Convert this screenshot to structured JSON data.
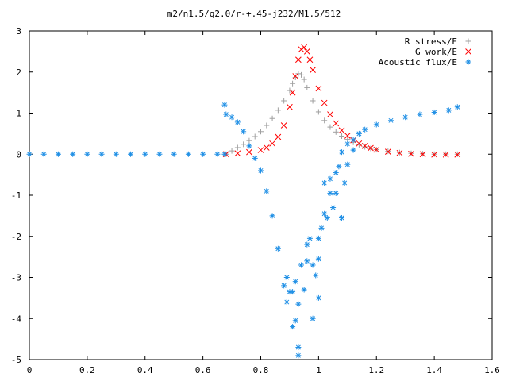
{
  "chart_data": {
    "type": "scatter",
    "title": "m2/n1.5/q2.0/r-+.45-j232/M1.5/512",
    "xlabel": "",
    "ylabel": "",
    "xlim": [
      0,
      1.6
    ],
    "ylim": [
      -5,
      3
    ],
    "x_ticks": [
      0,
      0.2,
      0.4,
      0.6,
      0.8,
      1,
      1.2,
      1.4,
      1.6
    ],
    "x_tick_labels": [
      "0",
      "0.2",
      "0.4",
      "0.6",
      "0.8",
      "1",
      "1.2",
      "1.4",
      "1.6"
    ],
    "y_ticks": [
      3,
      2,
      1,
      0,
      -1,
      -2,
      -3,
      -4,
      -5
    ],
    "y_tick_labels": [
      "3",
      "2",
      "1",
      "0",
      "-1",
      "-2",
      "-3",
      "-4",
      "-5"
    ],
    "grid": false,
    "legend_position": "top-right",
    "series": [
      {
        "name": "R stress/E",
        "marker": "+",
        "color": "#a0a0a0",
        "points": [
          [
            0.68,
            0.0
          ],
          [
            0.7,
            0.08
          ],
          [
            0.72,
            0.16
          ],
          [
            0.74,
            0.24
          ],
          [
            0.76,
            0.33
          ],
          [
            0.78,
            0.43
          ],
          [
            0.8,
            0.55
          ],
          [
            0.82,
            0.7
          ],
          [
            0.84,
            0.87
          ],
          [
            0.86,
            1.07
          ],
          [
            0.88,
            1.3
          ],
          [
            0.9,
            1.55
          ],
          [
            0.91,
            1.72
          ],
          [
            0.92,
            1.87
          ],
          [
            0.93,
            1.96
          ],
          [
            0.94,
            1.93
          ],
          [
            0.95,
            1.82
          ],
          [
            0.96,
            1.62
          ],
          [
            0.98,
            1.3
          ],
          [
            1.0,
            1.03
          ],
          [
            1.02,
            0.82
          ],
          [
            1.04,
            0.66
          ],
          [
            1.06,
            0.54
          ],
          [
            1.08,
            0.44
          ],
          [
            1.1,
            0.36
          ],
          [
            1.12,
            0.29
          ],
          [
            1.14,
            0.23
          ],
          [
            1.16,
            0.18
          ],
          [
            1.18,
            0.14
          ],
          [
            1.2,
            0.11
          ],
          [
            1.24,
            0.07
          ],
          [
            1.28,
            0.04
          ],
          [
            1.32,
            0.02
          ],
          [
            1.36,
            0.01
          ],
          [
            1.4,
            0.0
          ],
          [
            1.44,
            0.0
          ],
          [
            1.48,
            0.0
          ]
        ]
      },
      {
        "name": "G work/E",
        "marker": "x",
        "color": "#ff0000",
        "points": [
          [
            0.68,
            0.0
          ],
          [
            0.72,
            0.02
          ],
          [
            0.76,
            0.05
          ],
          [
            0.8,
            0.1
          ],
          [
            0.82,
            0.16
          ],
          [
            0.84,
            0.26
          ],
          [
            0.86,
            0.42
          ],
          [
            0.88,
            0.7
          ],
          [
            0.9,
            1.15
          ],
          [
            0.91,
            1.5
          ],
          [
            0.92,
            1.9
          ],
          [
            0.93,
            2.3
          ],
          [
            0.94,
            2.55
          ],
          [
            0.95,
            2.6
          ],
          [
            0.96,
            2.5
          ],
          [
            0.97,
            2.3
          ],
          [
            0.98,
            2.05
          ],
          [
            1.0,
            1.6
          ],
          [
            1.02,
            1.25
          ],
          [
            1.04,
            0.97
          ],
          [
            1.06,
            0.75
          ],
          [
            1.08,
            0.58
          ],
          [
            1.1,
            0.45
          ],
          [
            1.12,
            0.34
          ],
          [
            1.14,
            0.26
          ],
          [
            1.16,
            0.2
          ],
          [
            1.18,
            0.15
          ],
          [
            1.2,
            0.11
          ],
          [
            1.24,
            0.06
          ],
          [
            1.28,
            0.03
          ],
          [
            1.32,
            0.01
          ],
          [
            1.36,
            0.0
          ],
          [
            1.4,
            -0.01
          ],
          [
            1.44,
            -0.01
          ],
          [
            1.48,
            -0.01
          ]
        ]
      },
      {
        "name": "Acoustic flux/E",
        "marker": "*",
        "color": "#1f8fe5",
        "points": [
          [
            0.0,
            0.0
          ],
          [
            0.05,
            0.0
          ],
          [
            0.1,
            0.0
          ],
          [
            0.15,
            0.0
          ],
          [
            0.2,
            0.0
          ],
          [
            0.25,
            0.0
          ],
          [
            0.3,
            0.0
          ],
          [
            0.35,
            0.0
          ],
          [
            0.4,
            0.0
          ],
          [
            0.45,
            0.0
          ],
          [
            0.5,
            0.0
          ],
          [
            0.55,
            0.0
          ],
          [
            0.6,
            0.0
          ],
          [
            0.65,
            0.0
          ],
          [
            0.675,
            0.0
          ],
          [
            0.675,
            1.2
          ],
          [
            0.68,
            0.97
          ],
          [
            0.7,
            0.9
          ],
          [
            0.72,
            0.78
          ],
          [
            0.74,
            0.55
          ],
          [
            0.76,
            0.2
          ],
          [
            0.78,
            -0.1
          ],
          [
            0.8,
            -0.4
          ],
          [
            0.82,
            -0.9
          ],
          [
            0.84,
            -1.5
          ],
          [
            0.86,
            -2.3
          ],
          [
            0.88,
            -3.2
          ],
          [
            0.89,
            -3.6
          ],
          [
            0.91,
            -4.2
          ],
          [
            0.93,
            -4.7
          ],
          [
            0.93,
            -4.9
          ],
          [
            0.9,
            -3.35
          ],
          [
            0.92,
            -3.1
          ],
          [
            0.94,
            -2.7
          ],
          [
            0.96,
            -2.2
          ],
          [
            0.98,
            -2.7
          ],
          [
            1.0,
            -2.05
          ],
          [
            1.02,
            -1.45
          ],
          [
            1.04,
            -0.95
          ],
          [
            1.06,
            -0.45
          ],
          [
            1.08,
            0.05
          ],
          [
            1.1,
            0.25
          ],
          [
            1.12,
            0.35
          ],
          [
            1.14,
            0.5
          ],
          [
            1.16,
            0.6
          ],
          [
            1.2,
            0.72
          ],
          [
            1.25,
            0.82
          ],
          [
            1.3,
            0.9
          ],
          [
            1.35,
            0.97
          ],
          [
            1.4,
            1.02
          ],
          [
            1.45,
            1.07
          ],
          [
            1.48,
            1.15
          ],
          [
            0.89,
            -3.0
          ],
          [
            0.91,
            -3.35
          ],
          [
            0.92,
            -4.05
          ],
          [
            0.95,
            -3.3
          ],
          [
            0.96,
            -2.6
          ],
          [
            0.97,
            -2.05
          ],
          [
            0.99,
            -2.95
          ],
          [
            1.0,
            -2.55
          ],
          [
            1.01,
            -1.8
          ],
          [
            1.02,
            -0.7
          ],
          [
            1.03,
            -1.55
          ],
          [
            1.04,
            -0.6
          ],
          [
            1.05,
            -1.3
          ],
          [
            1.06,
            -0.95
          ],
          [
            1.08,
            -1.55
          ],
          [
            1.07,
            -0.3
          ],
          [
            1.09,
            -0.7
          ],
          [
            1.1,
            -0.25
          ],
          [
            1.12,
            0.1
          ],
          [
            0.98,
            -4.0
          ],
          [
            1.0,
            -3.5
          ],
          [
            0.93,
            -3.65
          ]
        ]
      }
    ]
  }
}
